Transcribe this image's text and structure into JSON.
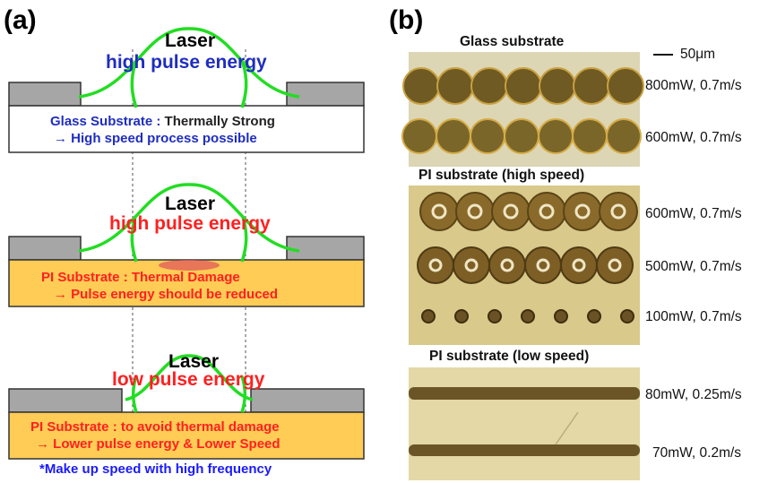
{
  "panel_a": {
    "label": "(a)",
    "diagrams": [
      {
        "laser": "Laser",
        "energy": "high pulse energy",
        "energy_color": "#1f2dbf",
        "substrate_fill": "#ffffff",
        "line1_a": "Glass Substrate : ",
        "line1_b": "Thermally Strong",
        "line2": "→ High speed process possible",
        "text_color": "#1f2dbf"
      },
      {
        "laser": "Laser",
        "energy": "high pulse energy",
        "energy_color": "#ff2020",
        "substrate_fill": "#ffcc55",
        "line1_a": "PI Substrate : ",
        "line1_b": "Thermal Damage",
        "line2": "→ Pulse energy should be reduced",
        "text_color": "#ff2020"
      },
      {
        "laser": "Laser",
        "energy": "low pulse energy",
        "energy_color": "#ff2020",
        "substrate_fill": "#ffcc55",
        "line1_a": "PI Substrate : ",
        "line1_b": "to avoid thermal damage",
        "line2": "→ Lower pulse energy & Lower Speed",
        "text_color": "#ff2020"
      }
    ],
    "note": "*Make up speed with high frequency"
  },
  "panel_b": {
    "label": "(b)",
    "scale_bar": "50μm",
    "sections": [
      {
        "title": "Glass substrate",
        "rows": [
          "800mW, 0.7m/s",
          "600mW, 0.7m/s"
        ]
      },
      {
        "title": "PI substrate (high speed)",
        "rows": [
          "600mW, 0.7m/s",
          "500mW, 0.7m/s",
          "100mW, 0.7m/s"
        ]
      },
      {
        "title": "PI substrate (low speed)",
        "rows": [
          "80mW, 0.25m/s",
          "70mW, 0.2m/s"
        ]
      }
    ]
  },
  "colors": {
    "laser_beam": "#22dd22",
    "mask_gray": "#a6a6a6",
    "damage": "#e05a5a",
    "glass_background": "#dcd6b4",
    "glass_spot": "#6e5a22",
    "pi_background": "#d9c98a",
    "pi_spot": "#8a6a2a",
    "pi_low_background": "#e3d8a6",
    "pi_low_line": "#6b5527"
  }
}
